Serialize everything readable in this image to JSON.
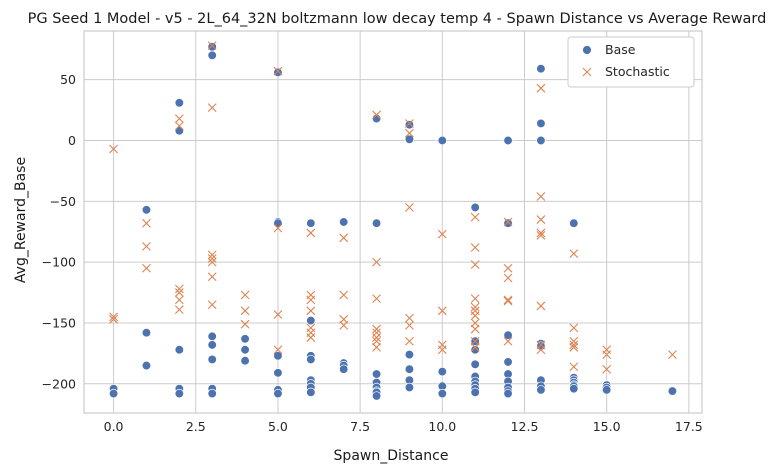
{
  "chart_data": {
    "type": "scatter",
    "title": "PG Seed 1 Model - v5 - 2L_64_32N boltzmann low decay temp 4 - Spawn Distance vs Average Reward",
    "xlabel": "Spawn_Distance",
    "ylabel": "Avg_Reward_Base",
    "xlim": [
      -0.9,
      17.9
    ],
    "ylim": [
      -224,
      90
    ],
    "xticks": [
      0.0,
      2.5,
      5.0,
      7.5,
      10.0,
      12.5,
      15.0,
      17.5
    ],
    "xtick_labels": [
      "0.0",
      "2.5",
      "5.0",
      "7.5",
      "10.0",
      "12.5",
      "15.0",
      "17.5"
    ],
    "yticks": [
      -200,
      -150,
      -100,
      -50,
      0,
      50
    ],
    "ytick_labels": [
      "−200",
      "−150",
      "−100",
      "−50",
      "0",
      "50"
    ],
    "grid": true,
    "legend": "top-right",
    "series": [
      {
        "name": "Base",
        "marker": "circle",
        "color": "#4c72b0",
        "points": [
          [
            0,
            -204
          ],
          [
            0,
            -208
          ],
          [
            1,
            -57
          ],
          [
            1,
            -158
          ],
          [
            1,
            -185
          ],
          [
            2,
            31
          ],
          [
            2,
            8
          ],
          [
            2,
            -172
          ],
          [
            2,
            -204
          ],
          [
            2,
            -208
          ],
          [
            3,
            77
          ],
          [
            3,
            70
          ],
          [
            3,
            -161
          ],
          [
            3,
            -168
          ],
          [
            3,
            -180
          ],
          [
            3,
            -204
          ],
          [
            3,
            -208
          ],
          [
            4,
            -163
          ],
          [
            4,
            -172
          ],
          [
            4,
            -181
          ],
          [
            5,
            56
          ],
          [
            5,
            -67
          ],
          [
            5,
            -68
          ],
          [
            5,
            -177
          ],
          [
            5,
            -191
          ],
          [
            5,
            -205
          ],
          [
            5,
            -208
          ],
          [
            6,
            -68
          ],
          [
            6,
            -148
          ],
          [
            6,
            -177
          ],
          [
            6,
            -180
          ],
          [
            6,
            -197
          ],
          [
            6,
            -200
          ],
          [
            6,
            -203
          ],
          [
            6,
            -207
          ],
          [
            7,
            -67
          ],
          [
            7,
            -183
          ],
          [
            7,
            -185
          ],
          [
            7,
            -188
          ],
          [
            8,
            18
          ],
          [
            8,
            -68
          ],
          [
            8,
            -192
          ],
          [
            8,
            -199
          ],
          [
            8,
            -203
          ],
          [
            8,
            -206
          ],
          [
            8,
            -207
          ],
          [
            8,
            -210
          ],
          [
            9,
            13
          ],
          [
            9,
            1
          ],
          [
            9,
            -176
          ],
          [
            9,
            -188
          ],
          [
            9,
            -197
          ],
          [
            9,
            -203
          ],
          [
            10,
            0
          ],
          [
            10,
            -190
          ],
          [
            10,
            -202
          ],
          [
            10,
            -208
          ],
          [
            11,
            -55
          ],
          [
            11,
            -165
          ],
          [
            11,
            -172
          ],
          [
            11,
            -184
          ],
          [
            11,
            -194
          ],
          [
            11,
            -198
          ],
          [
            11,
            -201
          ],
          [
            11,
            -204
          ],
          [
            11,
            -207
          ],
          [
            12,
            0
          ],
          [
            12,
            -68
          ],
          [
            12,
            -160
          ],
          [
            12,
            -182
          ],
          [
            12,
            -192
          ],
          [
            12,
            -198
          ],
          [
            12,
            -203
          ],
          [
            12,
            -206
          ],
          [
            12,
            -208
          ],
          [
            13,
            59
          ],
          [
            13,
            14
          ],
          [
            13,
            0
          ],
          [
            13,
            -167
          ],
          [
            13,
            -169
          ],
          [
            13,
            -197
          ],
          [
            13,
            -202
          ],
          [
            13,
            -205
          ],
          [
            14,
            -68
          ],
          [
            14,
            -195
          ],
          [
            14,
            -197
          ],
          [
            14,
            -199
          ],
          [
            14,
            -201
          ],
          [
            14,
            -202
          ],
          [
            14,
            -204
          ],
          [
            15,
            -201
          ],
          [
            15,
            -203
          ],
          [
            15,
            -205
          ],
          [
            17,
            -206
          ]
        ]
      },
      {
        "name": "Stochastic",
        "marker": "x",
        "color": "#dd8452",
        "points": [
          [
            0,
            -7
          ],
          [
            0,
            -145
          ],
          [
            0,
            -147
          ],
          [
            1,
            -68
          ],
          [
            1,
            -87
          ],
          [
            1,
            -105
          ],
          [
            2,
            18
          ],
          [
            2,
            12
          ],
          [
            2,
            -122
          ],
          [
            2,
            -125
          ],
          [
            2,
            -131
          ],
          [
            2,
            -139
          ],
          [
            3,
            78
          ],
          [
            3,
            27
          ],
          [
            3,
            -94
          ],
          [
            3,
            -97
          ],
          [
            3,
            -100
          ],
          [
            3,
            -112
          ],
          [
            3,
            -135
          ],
          [
            4,
            -127
          ],
          [
            4,
            -140
          ],
          [
            4,
            -151
          ],
          [
            5,
            57
          ],
          [
            5,
            -72
          ],
          [
            5,
            -143
          ],
          [
            5,
            -172
          ],
          [
            6,
            -76
          ],
          [
            6,
            -127
          ],
          [
            6,
            -131
          ],
          [
            6,
            -140
          ],
          [
            6,
            -154
          ],
          [
            6,
            -158
          ],
          [
            6,
            -162
          ],
          [
            7,
            -80
          ],
          [
            7,
            -127
          ],
          [
            7,
            -147
          ],
          [
            7,
            -152
          ],
          [
            8,
            21
          ],
          [
            8,
            -100
          ],
          [
            8,
            -130
          ],
          [
            8,
            -155
          ],
          [
            8,
            -158
          ],
          [
            8,
            -162
          ],
          [
            8,
            -165
          ],
          [
            8,
            -170
          ],
          [
            9,
            14
          ],
          [
            9,
            6
          ],
          [
            9,
            -55
          ],
          [
            9,
            -146
          ],
          [
            9,
            -152
          ],
          [
            9,
            -165
          ],
          [
            10,
            -77
          ],
          [
            10,
            -140
          ],
          [
            10,
            -168
          ],
          [
            10,
            -172
          ],
          [
            11,
            -63
          ],
          [
            11,
            -88
          ],
          [
            11,
            -102
          ],
          [
            11,
            -130
          ],
          [
            11,
            -137
          ],
          [
            11,
            -140
          ],
          [
            11,
            -144
          ],
          [
            11,
            -150
          ],
          [
            11,
            -155
          ],
          [
            11,
            -165
          ],
          [
            11,
            -170
          ],
          [
            12,
            -67
          ],
          [
            12,
            -105
          ],
          [
            12,
            -113
          ],
          [
            12,
            -131
          ],
          [
            12,
            -132
          ],
          [
            12,
            -165
          ],
          [
            13,
            43
          ],
          [
            13,
            -46
          ],
          [
            13,
            -65
          ],
          [
            13,
            -76
          ],
          [
            13,
            -78
          ],
          [
            13,
            -136
          ],
          [
            13,
            -168
          ],
          [
            13,
            -172
          ],
          [
            14,
            -93
          ],
          [
            14,
            -154
          ],
          [
            14,
            -165
          ],
          [
            14,
            -168
          ],
          [
            14,
            -170
          ],
          [
            14,
            -186
          ],
          [
            15,
            -172
          ],
          [
            15,
            -176
          ],
          [
            15,
            -188
          ],
          [
            17,
            -176
          ]
        ]
      }
    ]
  }
}
